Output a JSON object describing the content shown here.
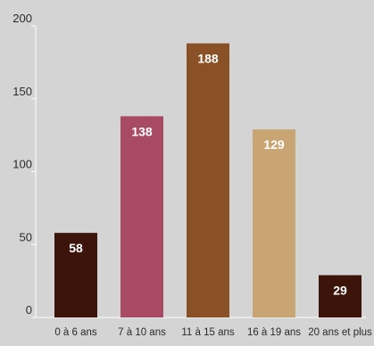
{
  "chart_data": {
    "type": "bar",
    "categories": [
      "0 à 6 ans",
      "7 à 10 ans",
      "11 à 15 ans",
      "16 à 19 ans",
      "20 ans et plus"
    ],
    "values": [
      58,
      138,
      188,
      129,
      29
    ],
    "data_labels": [
      "58",
      "138",
      "188",
      "129",
      "29"
    ],
    "bar_colors": [
      "#3d1409",
      "#a94a64",
      "#8a5026",
      "#c9a573",
      "#3d1409"
    ],
    "ylim": [
      0,
      200
    ],
    "yticks": [
      0,
      50,
      100,
      150,
      200
    ],
    "ytick_labels": [
      "0",
      "50",
      "100",
      "150",
      "200"
    ],
    "grid": false,
    "legend": "none",
    "title": "",
    "xlabel": "",
    "ylabel": ""
  },
  "colors": {
    "background": "#d4d4d4",
    "axis": "#ffffff",
    "text": "#2a2a2a",
    "bar_label": "#ffffff"
  }
}
